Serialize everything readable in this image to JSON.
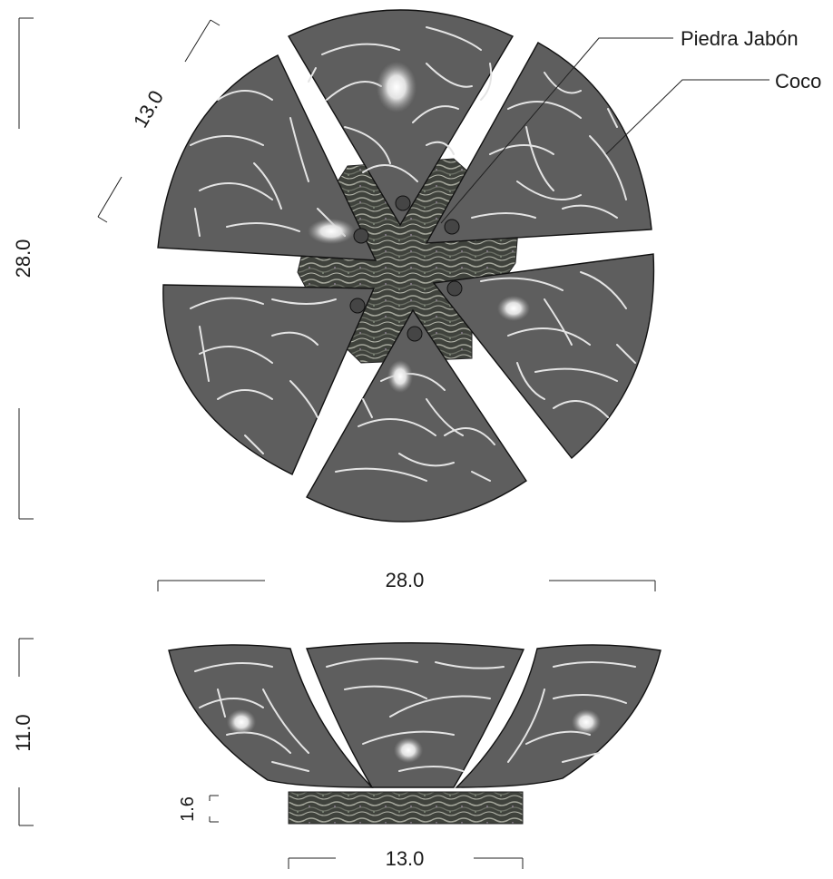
{
  "dimensions": {
    "top_height": "28.0",
    "top_width": "28.0",
    "piece_edge": "13.0",
    "side_height": "11.0",
    "base_height": "1.6",
    "base_width": "13.0"
  },
  "labels": {
    "soapstone": "Piedra Jabón",
    "coconut": "Coco"
  },
  "colors": {
    "shell_fill": "#5e5e5e",
    "shell_stroke": "#111111",
    "fiber": "#e6e6e6",
    "stone_dark": "#3a3d38",
    "stone_light": "#9ea096",
    "line": "#222222"
  }
}
